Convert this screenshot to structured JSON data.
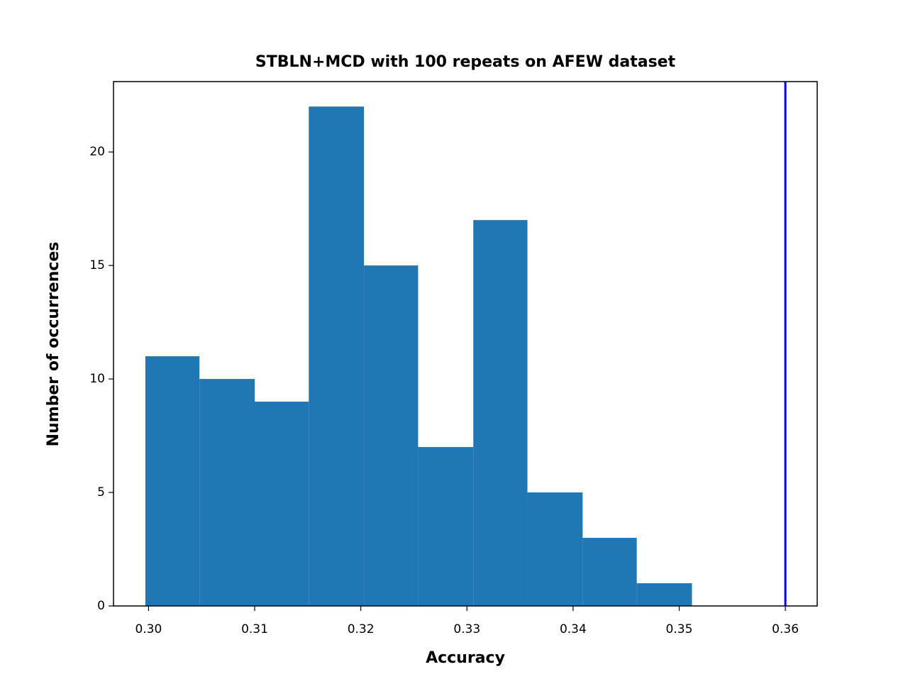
{
  "chart_data": {
    "type": "histogram",
    "title": "STBLN+MCD with 100 repeats on AFEW dataset",
    "x_label": "Accuracy",
    "y_label": "Number of occurrences",
    "bins": [
      0.2997,
      0.3048,
      0.31,
      0.3151,
      0.3203,
      0.3254,
      0.3306,
      0.3357,
      0.3409,
      0.346,
      0.3512
    ],
    "values": [
      11,
      10,
      9,
      22,
      15,
      7,
      17,
      5,
      3,
      1
    ],
    "color": "#1f77b4",
    "vline": {
      "x": 0.36,
      "color": "#0000ff"
    },
    "xlim": [
      0.2967,
      0.363
    ],
    "ylim": [
      0,
      23.1
    ],
    "xticks": [
      {
        "value": 0.3,
        "label": "0.30"
      },
      0.31,
      0.32,
      0.33,
      0.34,
      0.35,
      0.36
    ],
    "yticks": [
      0,
      5,
      10,
      15,
      20
    ]
  }
}
